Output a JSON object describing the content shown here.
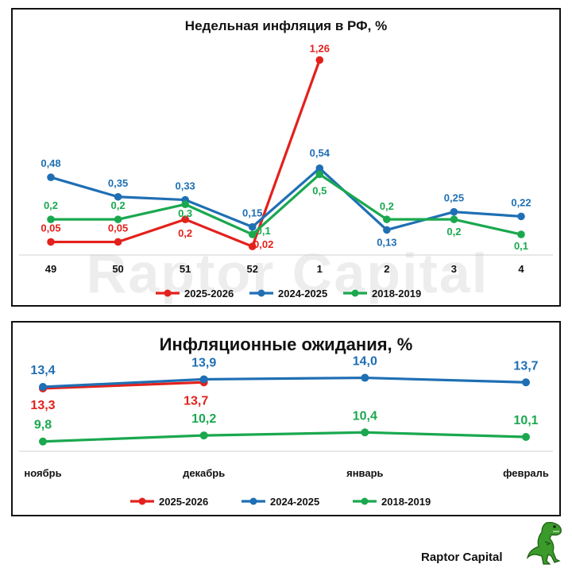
{
  "chart_data": [
    {
      "type": "line",
      "title": "Недельная инфляция в РФ, %",
      "categories": [
        "49",
        "50",
        "51",
        "52",
        "1",
        "2",
        "3",
        "4"
      ],
      "ylim": [
        0,
        1.3
      ],
      "series": [
        {
          "name": "2025-2026",
          "color": "#e3211c",
          "values": [
            0.05,
            0.05,
            0.2,
            0.02,
            1.26,
            null,
            null,
            null
          ],
          "labels": [
            "0,05",
            "0,05",
            "0,2",
            "0,02",
            "1,26",
            "",
            "",
            ""
          ]
        },
        {
          "name": "2024-2025",
          "color": "#1f6fb4",
          "values": [
            0.48,
            0.35,
            0.33,
            0.15,
            0.54,
            0.13,
            0.25,
            0.22
          ],
          "labels": [
            "0,48",
            "0,35",
            "0,33",
            "0,15",
            "0,54",
            "0,13",
            "0,25",
            "0,22"
          ]
        },
        {
          "name": "2018-2019",
          "color": "#1aa84f",
          "values": [
            0.2,
            0.2,
            0.3,
            0.1,
            0.5,
            0.2,
            0.2,
            0.1
          ],
          "labels": [
            "0,2",
            "0,2",
            "0,3",
            "0,1",
            "0,5",
            "0,2",
            "0,2",
            "0,1"
          ]
        }
      ]
    },
    {
      "type": "line",
      "title": "Инфляционные ожидания, %",
      "categories": [
        "ноябрь",
        "декабрь",
        "январь",
        "февраль"
      ],
      "ylim": [
        9,
        14.5
      ],
      "series": [
        {
          "name": "2025-2026",
          "color": "#e3211c",
          "values": [
            13.3,
            13.7,
            null,
            null
          ],
          "labels": [
            "13,3",
            "13,7",
            "",
            ""
          ]
        },
        {
          "name": "2024-2025",
          "color": "#1f6fb4",
          "values": [
            13.4,
            13.9,
            14.0,
            13.7
          ],
          "labels": [
            "13,4",
            "13,9",
            "14,0",
            "13,7"
          ]
        },
        {
          "name": "2018-2019",
          "color": "#1aa84f",
          "values": [
            9.8,
            10.2,
            10.4,
            10.1
          ],
          "labels": [
            "9,8",
            "10,2",
            "10,4",
            "10,1"
          ]
        }
      ]
    }
  ],
  "watermark": "Raptor Capital",
  "brand": "Raptor Capital"
}
